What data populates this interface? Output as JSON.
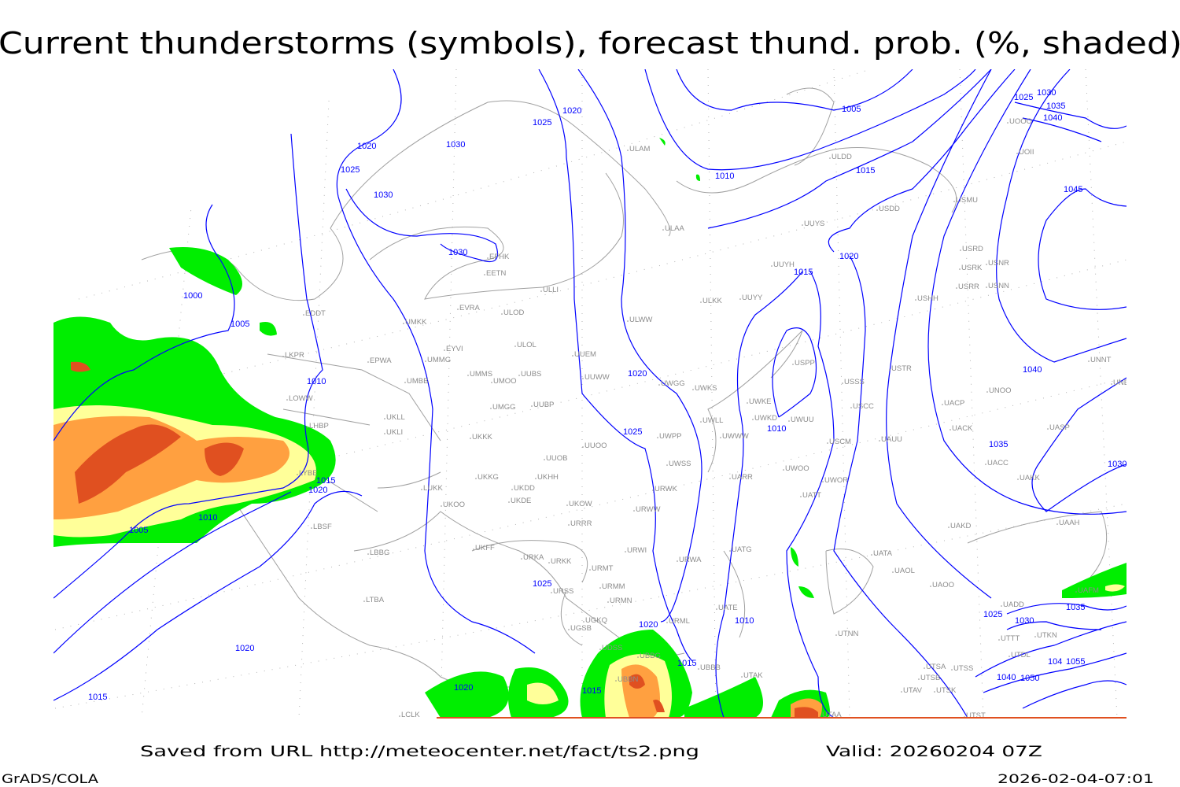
{
  "title": "Current thunderstorms (symbols), forecast thund. prob. (%, shaded)",
  "footer": {
    "saved": "Saved from URL http://meteocenter.net/fact/ts2.png",
    "valid": "Valid: 20260204 07Z",
    "software": "GrADS/COLA",
    "timestamp": "2026-02-04-07:01"
  },
  "colors": {
    "isobar": "#0000ff",
    "coastline": "#a0a0a0",
    "station_label": "#8c8c8c",
    "prob_low": "#00ee00",
    "prob_mid": "#ffff99",
    "prob_high": "#ffa040",
    "prob_max": "#e05020"
  },
  "isobar_labels": [
    "1020",
    "1025",
    "1020",
    "1030",
    "1025",
    "1030",
    "1030",
    "1005",
    "1010",
    "1015",
    "1025",
    "1030",
    "1035",
    "1040",
    "1045",
    "1020",
    "1015",
    "1000",
    "1005",
    "1010",
    "1015",
    "1020",
    "1010",
    "1005",
    "1020",
    "1025",
    "1010",
    "1040",
    "1035",
    "1030",
    "1025",
    "1020",
    "1015",
    "1015",
    "1020",
    "1020",
    "1015",
    "1010",
    "1035",
    "1025",
    "1030",
    "1040",
    "1050",
    "1055",
    "104"
  ],
  "stations": [
    "EFHK",
    "EETN",
    "ULLI",
    "EVRA",
    "ULOD",
    "UMKK",
    "EYVI",
    "ULOL",
    "EPWA",
    "UMMG",
    "UUEM",
    "UMMS",
    "UUBS",
    "UMOO",
    "UMBB",
    "UUWW",
    "UMGG",
    "UUBP",
    "UKLL",
    "UKLI",
    "UKKK",
    "UUOO",
    "UUOB",
    "UKKG",
    "UKHH",
    "UKDD",
    "UKDE",
    "UKOW",
    "LUKK",
    "UKOO",
    "URRR",
    "UKFF",
    "URKA",
    "URKK",
    "URMT",
    "URSS",
    "URMM",
    "URMN",
    "UGKQ",
    "UGSB",
    "UDSS",
    "UBBG",
    "UBBN",
    "LBBG",
    "LTBA",
    "LCLK",
    "LKPR",
    "LOWW",
    "LHBP",
    "LYBE",
    "LBSF",
    "EDDT",
    "ULAA",
    "ULAM",
    "ULDD",
    "USDD",
    "USMU",
    "UUYS",
    "UUYH",
    "ULKK",
    "UUYY",
    "ULWW",
    "UWGG",
    "UWKS",
    "UWKE",
    "UWKD",
    "UWUU",
    "UWLL",
    "UWWW",
    "UWPP",
    "UWSS",
    "URWW",
    "URWK",
    "URWI",
    "URWA",
    "URML",
    "UATG",
    "UATE",
    "UATT",
    "UWOO",
    "UWOR",
    "UARR",
    "USSS",
    "USCC",
    "USCM",
    "UAUU",
    "USTR",
    "USPP",
    "USHH",
    "USRD",
    "USRK",
    "USNR",
    "USRR",
    "USNN",
    "UNOO",
    "UACP",
    "UACK",
    "UACC",
    "UAKK",
    "UASP",
    "UNNT",
    "UNBB",
    "UAAH",
    "UAKD",
    "UATA",
    "UAOL",
    "UAOO",
    "UAFM",
    "UADD",
    "UTTT",
    "UTKN",
    "UTDL",
    "UTSA",
    "UTSS",
    "UTSB",
    "UTAV",
    "UTSK",
    "UTST",
    "UTAA",
    "UTNN",
    "UTAK",
    "UBBB",
    "UOOO",
    "UOII"
  ]
}
